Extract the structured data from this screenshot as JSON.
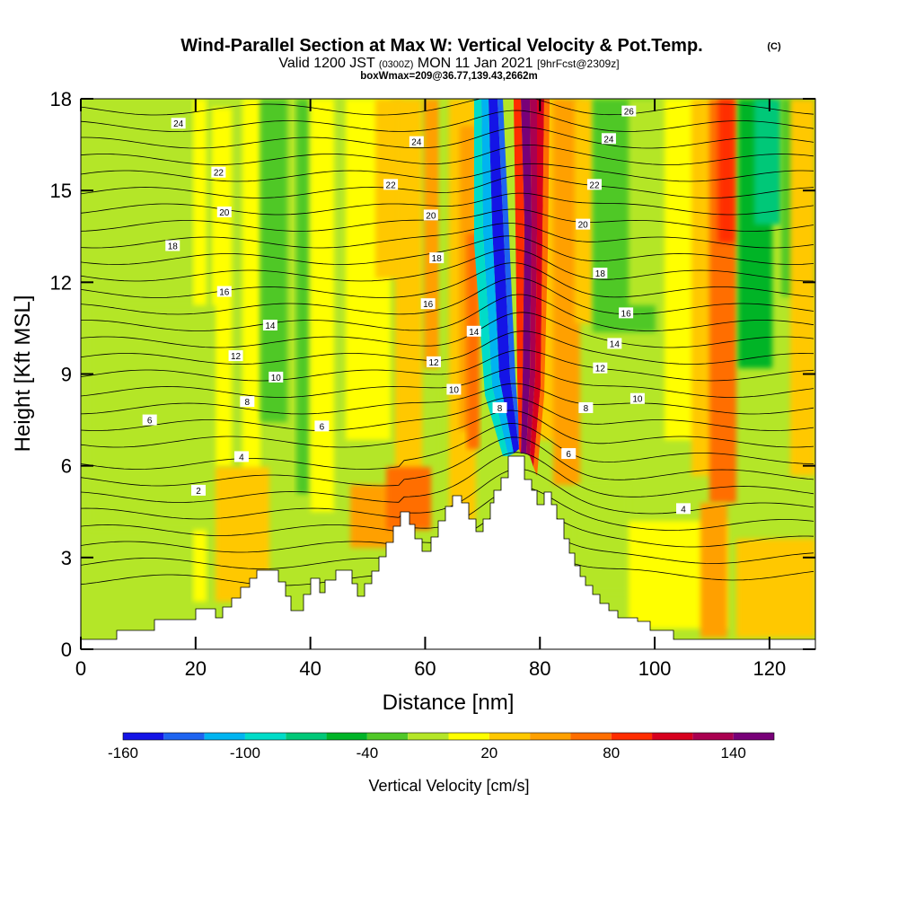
{
  "header": {
    "title": "Wind-Parallel Section at Max W: Vertical Velocity & Pot.Temp.",
    "copyright": "(C)",
    "valid_prefix": "Valid 1200 JST",
    "valid_utc": "(0300Z)",
    "valid_date": "MON 11 Jan 2021",
    "forecast": "[9hrFcst@2309z]",
    "box_info": "boxWmax=209@36.77,139.43,2662m"
  },
  "chart_data": {
    "type": "heatmap",
    "title": "Wind-Parallel Section at Max W: Vertical Velocity & Pot.Temp.",
    "xlabel": "Distance [nm]",
    "ylabel": "Height [Kft MSL]",
    "xlim": [
      0,
      128
    ],
    "ylim": [
      0,
      18
    ],
    "x_ticks": [
      0,
      20,
      40,
      60,
      80,
      100,
      120
    ],
    "y_ticks": [
      0,
      3,
      6,
      9,
      12,
      15,
      18
    ],
    "colorbar": {
      "label": "Vertical Velocity [cm/s]",
      "tick_labels": [
        -160,
        -100,
        -40,
        20,
        80,
        140
      ],
      "min": -160,
      "max": 160,
      "step": 20,
      "colors": [
        "#1414e6",
        "#1e64f0",
        "#00b4f0",
        "#00dcc8",
        "#00c878",
        "#00b428",
        "#50c828",
        "#b4e628",
        "#ffff00",
        "#ffc800",
        "#ffa000",
        "#ff6e00",
        "#ff2d00",
        "#d7001e",
        "#aa0050",
        "#780078"
      ]
    },
    "contour_labels": [
      {
        "x": 17,
        "y": 17.2,
        "t": "24"
      },
      {
        "x": 24,
        "y": 15.6,
        "t": "22"
      },
      {
        "x": 25,
        "y": 14.3,
        "t": "20"
      },
      {
        "x": 16,
        "y": 13.2,
        "t": "18"
      },
      {
        "x": 25,
        "y": 11.7,
        "t": "16"
      },
      {
        "x": 33,
        "y": 10.6,
        "t": "14"
      },
      {
        "x": 27,
        "y": 9.6,
        "t": "12"
      },
      {
        "x": 34,
        "y": 8.9,
        "t": "10"
      },
      {
        "x": 29,
        "y": 8.1,
        "t": "8"
      },
      {
        "x": 12,
        "y": 7.5,
        "t": "6"
      },
      {
        "x": 42,
        "y": 7.3,
        "t": "6"
      },
      {
        "x": 28,
        "y": 6.3,
        "t": "4"
      },
      {
        "x": 20.5,
        "y": 5.2,
        "t": "2"
      },
      {
        "x": 58.5,
        "y": 16.6,
        "t": "24"
      },
      {
        "x": 54,
        "y": 15.2,
        "t": "22"
      },
      {
        "x": 61,
        "y": 14.2,
        "t": "20"
      },
      {
        "x": 62,
        "y": 12.8,
        "t": "18"
      },
      {
        "x": 60.5,
        "y": 11.3,
        "t": "16"
      },
      {
        "x": 68.5,
        "y": 10.4,
        "t": "14"
      },
      {
        "x": 61.5,
        "y": 9.4,
        "t": "12"
      },
      {
        "x": 65,
        "y": 8.5,
        "t": "10"
      },
      {
        "x": 73,
        "y": 7.9,
        "t": "8"
      },
      {
        "x": 95.5,
        "y": 17.6,
        "t": "26"
      },
      {
        "x": 92,
        "y": 16.7,
        "t": "24"
      },
      {
        "x": 89.5,
        "y": 15.2,
        "t": "22"
      },
      {
        "x": 87.5,
        "y": 13.9,
        "t": "20"
      },
      {
        "x": 90.5,
        "y": 12.3,
        "t": "18"
      },
      {
        "x": 95,
        "y": 11.0,
        "t": "16"
      },
      {
        "x": 93,
        "y": 10.0,
        "t": "14"
      },
      {
        "x": 90.5,
        "y": 9.2,
        "t": "12"
      },
      {
        "x": 97,
        "y": 8.2,
        "t": "10"
      },
      {
        "x": 88,
        "y": 7.9,
        "t": "8"
      },
      {
        "x": 85,
        "y": 6.4,
        "t": "6"
      },
      {
        "x": 105,
        "y": 4.6,
        "t": "4"
      }
    ]
  }
}
